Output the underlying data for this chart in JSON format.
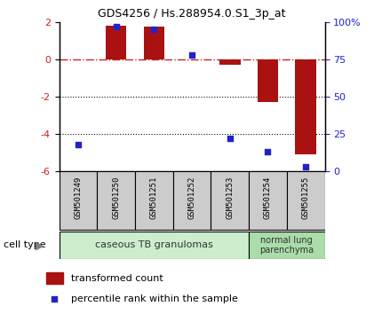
{
  "title": "GDS4256 / Hs.288954.0.S1_3p_at",
  "samples": [
    "GSM501249",
    "GSM501250",
    "GSM501251",
    "GSM501252",
    "GSM501253",
    "GSM501254",
    "GSM501255"
  ],
  "transformed_count": [
    0.0,
    1.8,
    1.75,
    0.0,
    -0.3,
    -2.3,
    -5.1
  ],
  "percentile_rank": [
    18,
    97,
    95,
    78,
    22,
    13,
    3
  ],
  "ylim": [
    -6,
    2
  ],
  "yticks": [
    -6,
    -4,
    -2,
    0,
    2
  ],
  "right_ylim": [
    0,
    100
  ],
  "right_yticks": [
    0,
    25,
    50,
    75,
    100
  ],
  "bar_color": "#aa1111",
  "dot_color": "#2222cc",
  "hline_color": "#cc2222",
  "dotted_color": "#111111",
  "group1_label": "caseous TB granulomas",
  "group2_label": "normal lung\nparenchyma",
  "group1_color": "#cceecc",
  "group2_color": "#aaddaa",
  "sample_box_color": "#cccccc",
  "cell_type_label": "cell type",
  "legend_bar_label": "transformed count",
  "legend_dot_label": "percentile rank within the sample",
  "bar_width": 0.55
}
